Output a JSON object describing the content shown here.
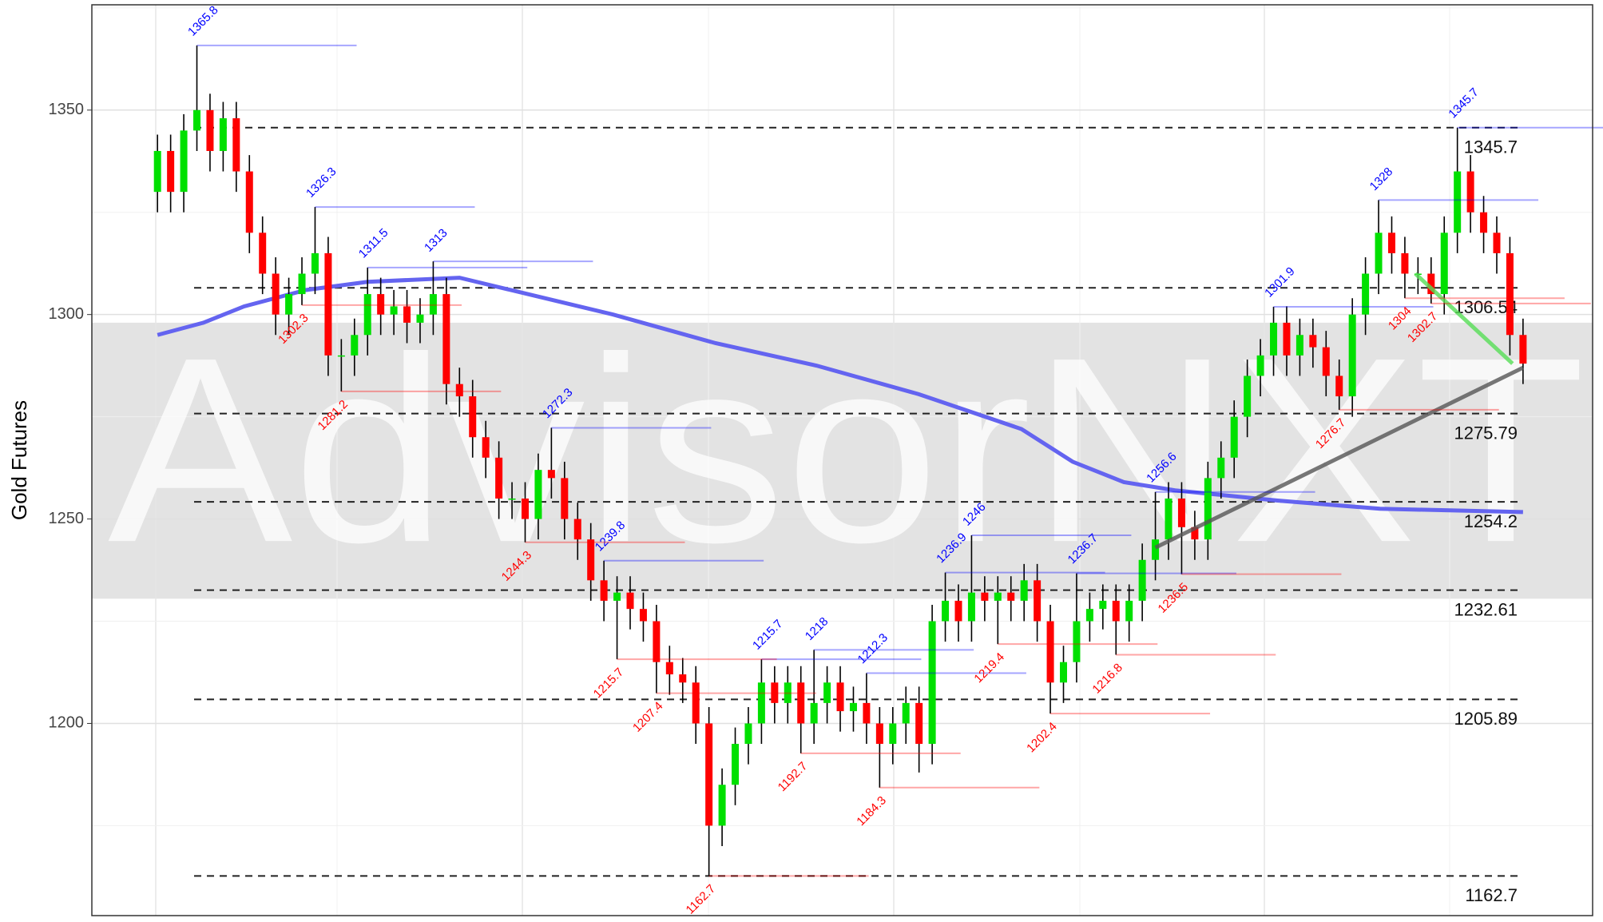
{
  "chart_data": {
    "type": "candlestick",
    "y_label": "Gold Futures",
    "watermark": "AdvisorNXT",
    "ylim": [
      1153,
      1375.75
    ],
    "yticks": [
      1200,
      1250,
      1300,
      1350
    ],
    "xlim": [
      -5,
      109.3
    ],
    "grid": true,
    "up_color": "#00e000",
    "down_color": "#ff0000",
    "open": [
      1330,
      1340,
      1330,
      1345,
      1350,
      1340,
      1348,
      1335,
      1320,
      1310,
      1300,
      1305,
      1310,
      1315,
      1290,
      1290,
      1295,
      1305,
      1300,
      1302,
      1298,
      1300,
      1305,
      1283,
      1280,
      1270,
      1265,
      1255,
      1255,
      1250,
      1262,
      1260,
      1250,
      1245,
      1235,
      1230,
      1232,
      1228,
      1225,
      1215,
      1212,
      1210,
      1200,
      1175,
      1185,
      1195,
      1200,
      1210,
      1205,
      1210,
      1200,
      1205,
      1210,
      1203,
      1205,
      1200,
      1195,
      1200,
      1205,
      1195,
      1225,
      1230,
      1225,
      1232,
      1230,
      1232,
      1230,
      1235,
      1225,
      1210,
      1215,
      1225,
      1228,
      1230,
      1225,
      1230,
      1240,
      1245,
      1255,
      1248,
      1245,
      1260,
      1265,
      1275,
      1285,
      1290,
      1298,
      1290,
      1295,
      1292,
      1285,
      1280,
      1300,
      1310,
      1320,
      1315,
      1310,
      1310,
      1305,
      1320,
      1335,
      1325,
      1320,
      1315,
      1295
    ],
    "high": [
      1344,
      1344,
      1349,
      1365.8,
      1354,
      1352,
      1352,
      1339,
      1324,
      1314,
      1309,
      1314,
      1326.3,
      1319,
      1294,
      1299,
      1311.5,
      1309,
      1306,
      1306,
      1304,
      1313,
      1309,
      1287,
      1284,
      1274,
      1269,
      1259,
      1259,
      1266,
      1272.3,
      1264,
      1254,
      1249,
      1239.8,
      1236,
      1236,
      1232,
      1229,
      1219,
      1216,
      1214,
      1204,
      1189,
      1199,
      1204,
      1215.7,
      1214,
      1214,
      1214,
      1218,
      1214,
      1214,
      1209,
      1212.3,
      1204,
      1204,
      1209,
      1209,
      1229,
      1236.9,
      1234,
      1246,
      1236,
      1236,
      1236,
      1239,
      1239,
      1229,
      1219,
      1236.7,
      1232,
      1234,
      1234,
      1234,
      1244,
      1256.6,
      1259,
      1259,
      1252,
      1264,
      1269,
      1279,
      1289,
      1294,
      1301.9,
      1302,
      1299,
      1299,
      1296,
      1289,
      1304,
      1314,
      1328,
      1324,
      1319,
      1314,
      1314,
      1324,
      1345.7,
      1339,
      1329,
      1324,
      1319,
      1299
    ],
    "low": [
      1325,
      1325,
      1325,
      1340,
      1335,
      1335,
      1330,
      1315,
      1305,
      1295,
      1295,
      1302.3,
      1305,
      1285,
      1281.2,
      1285,
      1290,
      1295,
      1295,
      1293,
      1293,
      1295,
      1278,
      1275,
      1265,
      1260,
      1250,
      1250,
      1244.3,
      1245,
      1255,
      1245,
      1240,
      1230,
      1225,
      1215.7,
      1223,
      1220,
      1207.4,
      1207,
      1205,
      1195,
      1162.7,
      1170,
      1180,
      1190,
      1195,
      1200,
      1200,
      1192.7,
      1195,
      1200,
      1198,
      1198,
      1195,
      1184.3,
      1190,
      1195,
      1188,
      1190,
      1220,
      1220,
      1220,
      1225,
      1219.4,
      1225,
      1225,
      1220,
      1202.4,
      1205,
      1210,
      1220,
      1223,
      1216.8,
      1220,
      1225,
      1235,
      1240,
      1236.5,
      1240,
      1240,
      1255,
      1260,
      1270,
      1280,
      1285,
      1285,
      1285,
      1287,
      1280,
      1276.7,
      1275,
      1295,
      1305,
      1310,
      1304,
      1305,
      1302.7,
      1300,
      1315,
      1320,
      1315,
      1310,
      1290,
      1283
    ],
    "close": [
      1340,
      1330,
      1345,
      1350,
      1340,
      1348,
      1335,
      1320,
      1310,
      1300,
      1305,
      1310,
      1315,
      1290,
      1290,
      1295,
      1305,
      1300,
      1302,
      1298,
      1300,
      1305,
      1283,
      1280,
      1270,
      1265,
      1255,
      1255,
      1250,
      1262,
      1260,
      1250,
      1245,
      1235,
      1230,
      1232,
      1228,
      1225,
      1215,
      1212,
      1210,
      1200,
      1175,
      1185,
      1195,
      1200,
      1210,
      1205,
      1210,
      1200,
      1205,
      1210,
      1203,
      1205,
      1200,
      1195,
      1200,
      1205,
      1195,
      1225,
      1230,
      1225,
      1232,
      1230,
      1232,
      1230,
      1235,
      1225,
      1210,
      1215,
      1225,
      1228,
      1230,
      1225,
      1230,
      1240,
      1245,
      1255,
      1248,
      1245,
      1260,
      1265,
      1275,
      1285,
      1290,
      1298,
      1290,
      1295,
      1292,
      1285,
      1280,
      1300,
      1310,
      1320,
      1315,
      1310,
      1310,
      1305,
      1320,
      1335,
      1325,
      1320,
      1315,
      1295,
      1288
    ],
    "peaks": {
      "color": "#0000ff",
      "x": [
        3,
        12,
        16,
        21,
        30,
        34,
        46,
        50,
        54,
        60,
        62,
        70,
        76,
        85,
        93,
        99
      ],
      "values": [
        1365.8,
        1326.3,
        1311.5,
        1313,
        1272.3,
        1239.8,
        1215.7,
        1218,
        1212.3,
        1236.9,
        1246,
        1236.7,
        1256.6,
        1301.9,
        1328,
        1345.7
      ]
    },
    "troughs": {
      "color": "#ff0000",
      "x": [
        11,
        14,
        28,
        35,
        38,
        42,
        49,
        55,
        64,
        68,
        73,
        78,
        90,
        95,
        97
      ],
      "values": [
        1302.3,
        1281.2,
        1244.3,
        1215.7,
        1207.4,
        1162.7,
        1192.7,
        1184.3,
        1219.4,
        1202.4,
        1216.8,
        1236.5,
        1276.7,
        1304,
        1302.7
      ]
    },
    "levels": [
      1345.7,
      1306.54,
      1275.79,
      1254.2,
      1232.61,
      1205.89,
      1162.7
    ],
    "band": [
      1230.5,
      1298
    ],
    "moving_average": {
      "color": "#6464f0",
      "x": [
        0,
        3.5,
        6.6,
        11.3,
        16,
        23,
        26.9,
        34.7,
        42.5,
        50.2,
        58,
        65.8,
        69.7,
        73.6,
        77.5,
        85.3,
        93.1,
        104
      ],
      "values": [
        1295,
        1298,
        1302,
        1306,
        1308,
        1309,
        1306,
        1300,
        1293,
        1287.5,
        1280.5,
        1272,
        1264,
        1259,
        1257,
        1254.5,
        1252.5,
        1251.7
      ]
    },
    "trend_lines": [
      {
        "color": "#555555",
        "x": [
          76,
          104
        ],
        "values": [
          1243,
          1287
        ]
      },
      {
        "color": "#55dd55",
        "x": [
          95.8,
          103.2
        ],
        "values": [
          1310,
          1288
        ]
      }
    ]
  }
}
